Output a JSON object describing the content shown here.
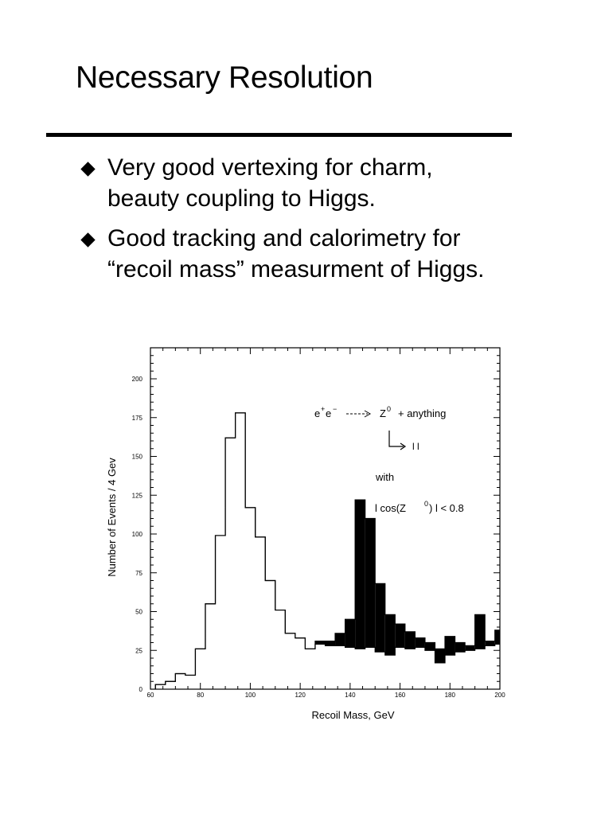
{
  "slide": {
    "title": "Necessary Resolution",
    "bullets": [
      {
        "lines": [
          "Very good vertexing for charm,",
          "beauty coupling to Higgs."
        ]
      },
      {
        "lines": [
          "Good tracking and calorimetry for",
          "“recoil mass” measurment of Higgs."
        ]
      }
    ]
  },
  "chart_data": {
    "type": "bar",
    "style": "step-histogram",
    "xlabel": "Recoil Mass, GeV",
    "ylabel": "Number of Events / 4 Gev",
    "xlim": [
      60,
      200
    ],
    "ylim": [
      0,
      220
    ],
    "xticks": [
      60,
      80,
      100,
      120,
      140,
      160,
      180,
      200
    ],
    "yticks": [
      0,
      25,
      50,
      75,
      100,
      125,
      150,
      175,
      200
    ],
    "bin_width": 4,
    "bin_edges": [
      62,
      66,
      70,
      74,
      78,
      82,
      86,
      90,
      94,
      98,
      102,
      106,
      110,
      114,
      118,
      122,
      126,
      130,
      134,
      138,
      142,
      146,
      150,
      154,
      158,
      162,
      166,
      170,
      174,
      178,
      182,
      186,
      190,
      194,
      198,
      200
    ],
    "series": [
      {
        "values": [
          3,
          5,
          10,
          9,
          26,
          55,
          99,
          162,
          178,
          117,
          98,
          70,
          51,
          36,
          33,
          26,
          29,
          28,
          28,
          27,
          26,
          27,
          24,
          22,
          27,
          26,
          27,
          25,
          17,
          22,
          24,
          25,
          26,
          28,
          29
        ]
      },
      {
        "values": [
          3,
          5,
          10,
          9,
          26,
          55,
          99,
          162,
          178,
          117,
          98,
          70,
          51,
          36,
          33,
          26,
          31,
          31,
          36,
          45,
          122,
          110,
          68,
          48,
          42,
          37,
          33,
          30,
          26,
          34,
          30,
          28,
          48,
          31,
          38
        ]
      }
    ],
    "annotations": {
      "process_lhs": "e",
      "process_rhs": "Z",
      "process_tail": "+ anything",
      "decay": "l l",
      "with": "with",
      "cut_prefix": "l cos(Z",
      "cut_suffix": ") l  < 0.8"
    }
  }
}
